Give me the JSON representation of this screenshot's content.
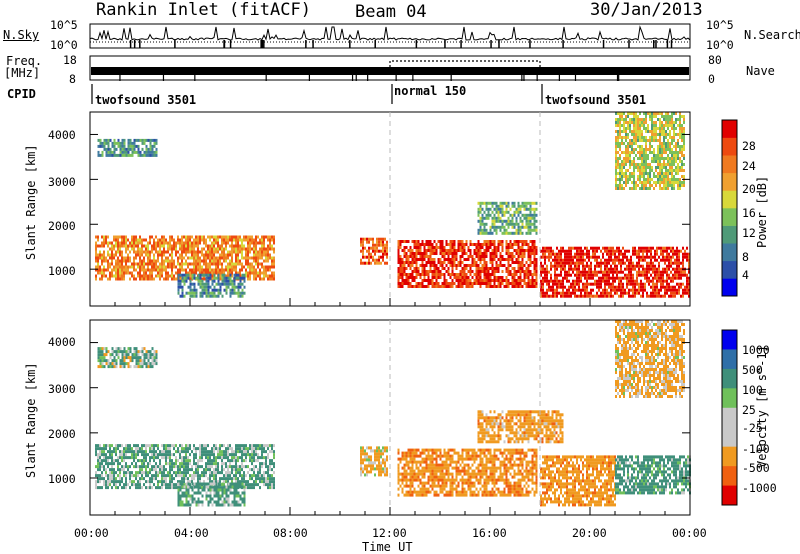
{
  "header": {
    "station": "Rankin Inlet (fitACF)",
    "beam": "Beam 04",
    "date": "30/Jan/2013"
  },
  "noise_panel": {
    "left_label": "N.Sky",
    "right_label": "N.Search",
    "ticks_left": [
      "10^5",
      "10^0"
    ],
    "ticks_right": [
      "10^5",
      "10^0"
    ]
  },
  "freq_panel": {
    "left_label_top": "Freq.",
    "left_label_unit": "[MHz]",
    "ticks_left": [
      "18",
      "8"
    ],
    "right_label": "Nave",
    "ticks_right": [
      "80",
      "0"
    ]
  },
  "cpid_panel": {
    "label": "CPID",
    "programs": [
      {
        "name": "twofsound 3501",
        "start_hour": 0
      },
      {
        "name": "normal 150",
        "start_hour": 12
      },
      {
        "name": "twofsound 3501",
        "start_hour": 18
      }
    ]
  },
  "colors": {
    "power_scale": [
      "#0000ee",
      "#2c4fa8",
      "#3f7a9e",
      "#4f9a78",
      "#7cc15a",
      "#d8d83a",
      "#f0a030",
      "#f07a20",
      "#ee4a10",
      "#e00000"
    ],
    "velocity_scale": [
      "#e00000",
      "#f06010",
      "#f09a20",
      "#c9c9c9",
      "#c9c9c9",
      "#6fc05a",
      "#3f8f7a",
      "#2f6fa8",
      "#0000ee"
    ]
  },
  "chart_data": [
    {
      "type": "heatmap",
      "name": "power",
      "xlabel": "",
      "ylabel": "Slant Range [km]",
      "xlim": [
        0,
        24
      ],
      "ylim": [
        180,
        4500
      ],
      "y_ticks": [
        "1000",
        "2000",
        "3000",
        "4000"
      ],
      "colorbar": {
        "label": "Power [dB]",
        "ticks": [
          "4",
          "8",
          "12",
          "16",
          "20",
          "24",
          "28"
        ],
        "range": [
          0,
          30
        ]
      },
      "regions": [
        {
          "x": [
            0.2,
            7.4
          ],
          "y": [
            800,
            1750
          ],
          "value": 22
        },
        {
          "x": [
            0.3,
            2.7
          ],
          "y": [
            3500,
            3900
          ],
          "value": 10
        },
        {
          "x": [
            3.5,
            6.2
          ],
          "y": [
            400,
            900
          ],
          "value": 9
        },
        {
          "x": [
            10.8,
            11.9
          ],
          "y": [
            1100,
            1700
          ],
          "value": 24
        },
        {
          "x": [
            12.3,
            17.9
          ],
          "y": [
            600,
            1650
          ],
          "value": 27
        },
        {
          "x": [
            15.5,
            17.9
          ],
          "y": [
            1800,
            2500
          ],
          "value": 12
        },
        {
          "x": [
            18.0,
            24.0
          ],
          "y": [
            400,
            1500
          ],
          "value": 28
        },
        {
          "x": [
            21.0,
            23.8
          ],
          "y": [
            2800,
            4500
          ],
          "value": 16
        }
      ]
    },
    {
      "type": "heatmap",
      "name": "velocity",
      "xlabel": "Time UT",
      "ylabel": "Slant Range [km]",
      "xlim": [
        0,
        24
      ],
      "ylim": [
        180,
        4500
      ],
      "x_ticks": [
        "00:00",
        "04:00",
        "08:00",
        "12:00",
        "16:00",
        "20:00",
        "00:00"
      ],
      "y_ticks": [
        "1000",
        "2000",
        "3000",
        "4000"
      ],
      "colorbar": {
        "label": "Velocity [m s^-1]",
        "ticks": [
          "-1000",
          "-500",
          "-100",
          "-25",
          "25",
          "100",
          "500",
          "1000"
        ],
        "range": [
          -1200,
          1200
        ]
      },
      "regions": [
        {
          "x": [
            0.2,
            7.4
          ],
          "y": [
            800,
            1750
          ],
          "value": 150
        },
        {
          "x": [
            0.3,
            2.7
          ],
          "y": [
            3500,
            3900
          ],
          "value": 100
        },
        {
          "x": [
            3.5,
            6.2
          ],
          "y": [
            400,
            900
          ],
          "value": 200
        },
        {
          "x": [
            10.8,
            11.9
          ],
          "y": [
            1100,
            1700
          ],
          "value": -150
        },
        {
          "x": [
            12.3,
            17.9
          ],
          "y": [
            600,
            1650
          ],
          "value": -400
        },
        {
          "x": [
            15.5,
            18.9
          ],
          "y": [
            1800,
            2500
          ],
          "value": -300
        },
        {
          "x": [
            18.0,
            21.0
          ],
          "y": [
            400,
            1500
          ],
          "value": -350
        },
        {
          "x": [
            21.0,
            24.0
          ],
          "y": [
            700,
            1500
          ],
          "value": 250
        },
        {
          "x": [
            21.0,
            23.8
          ],
          "y": [
            2800,
            4500
          ],
          "value": -200
        }
      ]
    }
  ]
}
